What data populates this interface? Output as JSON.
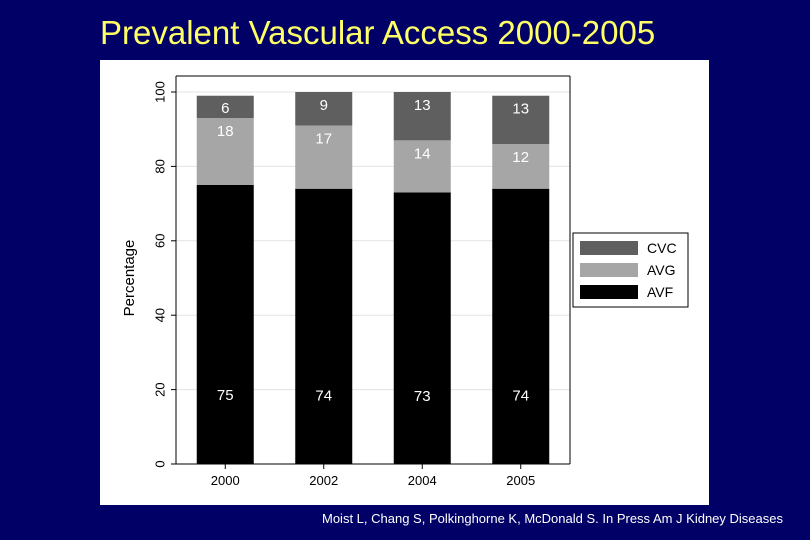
{
  "title": "Prevalent Vascular Access 2000-2005",
  "citation": "Moist L, Chang S, Polkinghorne K, McDonald S. In Press Am J Kidney Diseases",
  "chart_data": {
    "type": "bar",
    "stacked": true,
    "categories": [
      "2000",
      "2002",
      "2004",
      "2005"
    ],
    "series": [
      {
        "name": "AVF",
        "values": [
          75,
          74,
          73,
          74
        ],
        "color": "#000000"
      },
      {
        "name": "AVG",
        "values": [
          18,
          17,
          14,
          12
        ],
        "color": "#a6a6a6"
      },
      {
        "name": "CVC",
        "values": [
          6,
          9,
          13,
          13
        ],
        "color": "#5f5f5f"
      }
    ],
    "ylabel": "Percentage",
    "xlabel": "",
    "ylim": [
      0,
      100
    ],
    "yticks": [
      0,
      20,
      40,
      60,
      80,
      100
    ],
    "legend": {
      "position": "right",
      "order": [
        "CVC",
        "AVG",
        "AVF"
      ]
    },
    "grid": true
  }
}
